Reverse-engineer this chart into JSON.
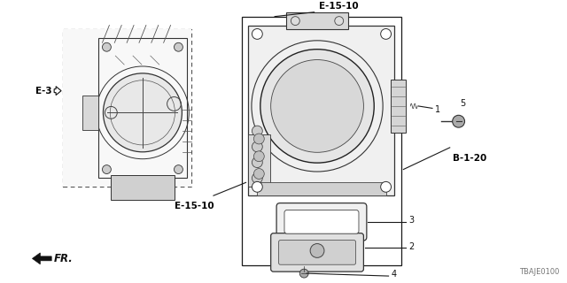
{
  "bg_color": "#ffffff",
  "title": "TBAJE0100",
  "labels": {
    "e15_10_top": "E-15-10",
    "e15_10_bottom": "E-15-10",
    "e3": "E-3",
    "b1_20": "B-1-20",
    "part1": "1",
    "part2": "2",
    "part3": "3",
    "part4": "4",
    "part5": "5",
    "fr": "FR."
  },
  "line_color": "#1a1a1a",
  "gray_color": "#888888",
  "light_gray": "#d0d0d0",
  "mid_gray": "#b0b0b0"
}
